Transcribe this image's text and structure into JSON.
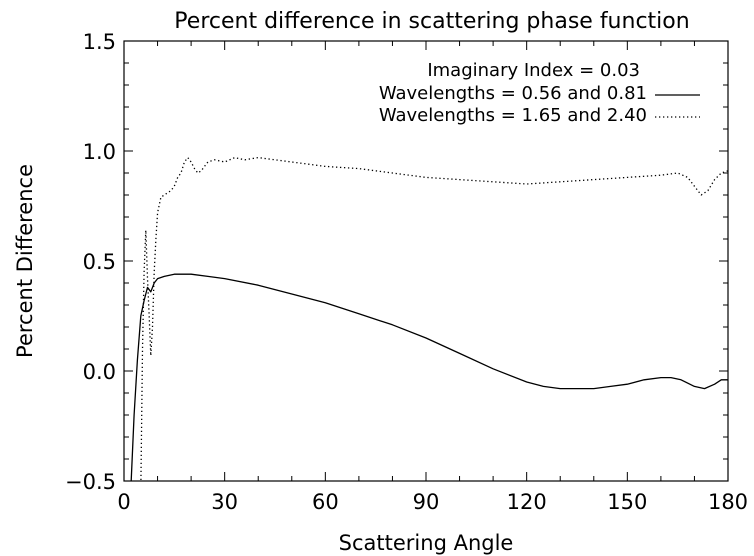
{
  "chart_data": {
    "type": "line",
    "title": "Percent difference in scattering phase function",
    "xlabel": "Scattering Angle",
    "ylabel": "Percent Difference",
    "xlim": [
      0,
      180
    ],
    "ylim": [
      -0.5,
      1.5
    ],
    "xticks": [
      0,
      30,
      60,
      90,
      120,
      150,
      180
    ],
    "yticks": [
      -0.5,
      0.0,
      0.5,
      1.0,
      1.5
    ],
    "xtick_labels": [
      "0",
      "30",
      "60",
      "90",
      "120",
      "150",
      "180"
    ],
    "ytick_labels": [
      "−0.5",
      "0.0",
      "0.5",
      "1.0",
      "1.5"
    ],
    "legend": {
      "header": "Imaginary Index = 0.03",
      "placement": "top-right"
    },
    "series": [
      {
        "name": "Wavelengths = 0.56 and 0.81",
        "style": "solid",
        "x": [
          2,
          3,
          4,
          5,
          6,
          7,
          8,
          9,
          10,
          12,
          15,
          18,
          20,
          25,
          30,
          40,
          50,
          60,
          70,
          80,
          90,
          100,
          110,
          120,
          125,
          130,
          135,
          140,
          145,
          150,
          155,
          160,
          163,
          166,
          170,
          173,
          176,
          178,
          180
        ],
        "y": [
          -0.55,
          -0.2,
          0.05,
          0.25,
          0.32,
          0.38,
          0.36,
          0.4,
          0.42,
          0.43,
          0.44,
          0.44,
          0.44,
          0.43,
          0.42,
          0.39,
          0.35,
          0.31,
          0.26,
          0.21,
          0.15,
          0.08,
          0.01,
          -0.05,
          -0.07,
          -0.08,
          -0.08,
          -0.08,
          -0.07,
          -0.06,
          -0.04,
          -0.03,
          -0.03,
          -0.04,
          -0.07,
          -0.08,
          -0.06,
          -0.04,
          -0.04
        ]
      },
      {
        "name": "Wavelengths = 1.65 and 2.40",
        "style": "dotted",
        "x": [
          5,
          5.5,
          6,
          6.5,
          7,
          7.5,
          8,
          8.5,
          9,
          9.5,
          10,
          11,
          12,
          13,
          14,
          15,
          16,
          17,
          18,
          19,
          20,
          21,
          22,
          23,
          24,
          25,
          27,
          30,
          33,
          36,
          40,
          45,
          50,
          55,
          60,
          70,
          80,
          90,
          100,
          110,
          120,
          130,
          140,
          150,
          160,
          165,
          168,
          170,
          172,
          174,
          176,
          178,
          180
        ],
        "y": [
          -0.55,
          0.1,
          0.45,
          0.64,
          0.42,
          0.25,
          0.07,
          0.2,
          0.45,
          0.6,
          0.72,
          0.79,
          0.8,
          0.81,
          0.82,
          0.84,
          0.88,
          0.9,
          0.95,
          0.97,
          0.95,
          0.92,
          0.9,
          0.91,
          0.93,
          0.95,
          0.96,
          0.95,
          0.97,
          0.96,
          0.97,
          0.96,
          0.95,
          0.94,
          0.93,
          0.92,
          0.9,
          0.88,
          0.87,
          0.86,
          0.85,
          0.86,
          0.87,
          0.88,
          0.89,
          0.9,
          0.88,
          0.84,
          0.8,
          0.82,
          0.87,
          0.9,
          0.91
        ]
      }
    ]
  }
}
